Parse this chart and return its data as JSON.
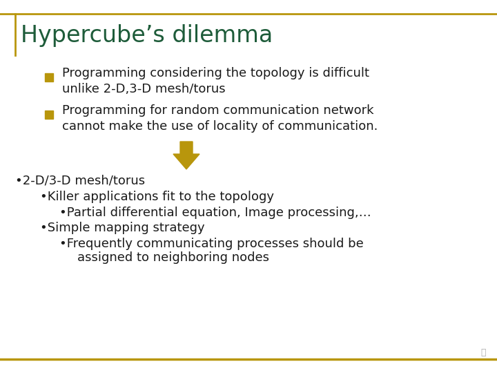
{
  "title": "Hypercube’s dilemma",
  "title_color": "#1E5C3A",
  "title_fontsize": 24,
  "bg_color": "#FFFFFF",
  "border_color": "#B8960C",
  "bullet_color": "#B8960C",
  "text_color": "#1a1a1a",
  "bullet1_line1": "Programming considering the topology is difficult",
  "bullet1_line2": "unlike 2-D,3-D mesh/torus",
  "bullet2_line1": "Programming for random communication network",
  "bullet2_line2": "cannot make the use of locality of communication.",
  "arrow_color": "#B8960C",
  "sub_items": [
    {
      "text": "•2-D/3-D mesh/torus",
      "indent": 0.03
    },
    {
      "text": "•Killer applications fit to the topology",
      "indent": 0.08
    },
    {
      "text": "•Partial differential equation, Image processing,…",
      "indent": 0.12
    },
    {
      "text": "•Simple mapping strategy",
      "indent": 0.08
    },
    {
      "text": "•Frequently communicating processes should be",
      "indent": 0.12
    },
    {
      "text": "assigned to neighboring nodes",
      "indent": 0.155
    }
  ],
  "sub_fontsize": 13,
  "bullet_fontsize": 13
}
